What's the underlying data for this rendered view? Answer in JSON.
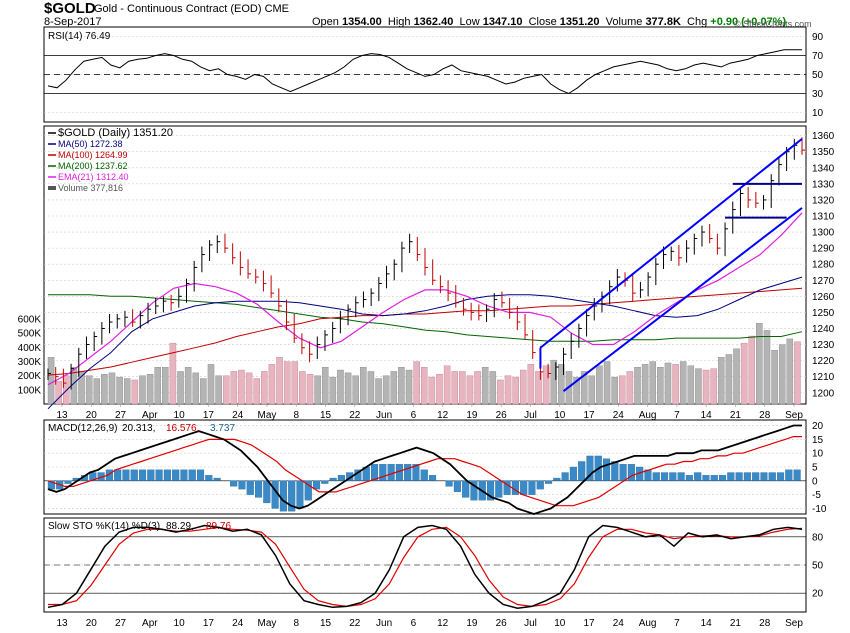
{
  "header": {
    "symbol": "$GOLD",
    "name": "Gold - Continuous Contract (EOD)",
    "exchange": "CME",
    "date": "8-Sep-2017",
    "open_label": "Open",
    "open": "1354.00",
    "high_label": "High",
    "high": "1362.40",
    "low_label": "Low",
    "low": "1347.10",
    "close_label": "Close",
    "close": "1351.20",
    "volume_label": "Volume",
    "volume": "377.8K",
    "chg_label": "Chg",
    "chg": "+0.90 (+0.07%)",
    "credit": "© StockCharts.com"
  },
  "colors": {
    "ma50": "#000080",
    "ma100": "#c00000",
    "ma200": "#006400",
    "ema21": "#e020e0",
    "channel": "#0000ff",
    "up_volume": "#b4b4b4",
    "down_volume": "#e8b4c0",
    "macd_hist": "#3a8ac8",
    "macd_signal": "#e00000"
  },
  "chart_data": [
    {
      "type": "line",
      "title": "RSI(14) 76.49",
      "legend": "RSI(14) 76.49",
      "ylim": [
        0,
        100
      ],
      "ytick_labels": [
        "90",
        "70",
        "50",
        "30",
        "10"
      ],
      "levels": [
        70,
        50,
        30
      ],
      "series": [
        {
          "name": "RSI(14)",
          "values": [
            38,
            36,
            44,
            55,
            64,
            66,
            68,
            60,
            57,
            64,
            66,
            67,
            70,
            72,
            70,
            66,
            64,
            58,
            54,
            56,
            50,
            48,
            45,
            50,
            48,
            40,
            36,
            32,
            36,
            40,
            44,
            48,
            52,
            58,
            66,
            70,
            72,
            71,
            68,
            62,
            56,
            52,
            48,
            50,
            56,
            60,
            54,
            52,
            50,
            48,
            44,
            40,
            42,
            46,
            48,
            50,
            40,
            34,
            30,
            36,
            44,
            50,
            54,
            58,
            60,
            62,
            64,
            62,
            60,
            56,
            54,
            56,
            60,
            62,
            60,
            58,
            62,
            64,
            66,
            70,
            72,
            74,
            76,
            76,
            76
          ]
        }
      ]
    },
    {
      "type": "candlestick",
      "title": "$GOLD (Daily) 1351.20",
      "legend": [
        "$GOLD (Daily) 1351.20",
        "MA(50) 1272.38",
        "MA(100) 1264.99",
        "MA(200) 1237.62",
        "EMA(21) 1312.40",
        "Volume 377,816"
      ],
      "ylim": [
        1193,
        1366
      ],
      "price_tick_labels": [
        "1360",
        "1350",
        "1340",
        "1330",
        "1320",
        "1310",
        "1300",
        "1290",
        "1280",
        "1270",
        "1260",
        "1250",
        "1240",
        "1230",
        "1220",
        "1210",
        "1200"
      ],
      "volume_tick_labels": [
        "600K",
        "500K",
        "400K",
        "300K",
        "200K",
        "100K"
      ],
      "x_tick_labels": [
        "13",
        "20",
        "27",
        "Apr",
        "10",
        "17",
        "24",
        "May",
        "8",
        "15",
        "22",
        "Jun",
        "6",
        "12",
        "19",
        "26",
        "Jul",
        "10",
        "17",
        "24",
        "Aug",
        "7",
        "14",
        "21",
        "28",
        "Sep"
      ],
      "close": [
        1212,
        1210,
        1206,
        1215,
        1224,
        1230,
        1235,
        1240,
        1244,
        1246,
        1247,
        1244,
        1248,
        1252,
        1254,
        1257,
        1256,
        1260,
        1268,
        1278,
        1286,
        1292,
        1294,
        1290,
        1284,
        1278,
        1274,
        1272,
        1268,
        1262,
        1254,
        1244,
        1234,
        1228,
        1224,
        1230,
        1236,
        1240,
        1246,
        1252,
        1256,
        1258,
        1262,
        1268,
        1274,
        1280,
        1290,
        1294,
        1286,
        1278,
        1270,
        1266,
        1262,
        1256,
        1252,
        1250,
        1248,
        1252,
        1258,
        1256,
        1250,
        1244,
        1236,
        1225,
        1213,
        1212,
        1216,
        1224,
        1232,
        1240,
        1248,
        1254,
        1260,
        1266,
        1272,
        1270,
        1262,
        1264,
        1272,
        1280,
        1286,
        1288,
        1284,
        1290,
        1296,
        1300,
        1296,
        1290,
        1302,
        1314,
        1324,
        1320,
        1318,
        1320,
        1332,
        1342,
        1350,
        1354,
        1351
      ],
      "series": [
        {
          "name": "MA(50)",
          "values": [
            1190,
            1203,
            1215,
            1225,
            1238,
            1246,
            1250,
            1254,
            1256,
            1257,
            1257,
            1257,
            1256,
            1254,
            1252,
            1249,
            1248,
            1249,
            1251,
            1254,
            1258,
            1260,
            1261,
            1261,
            1260,
            1258,
            1256,
            1254,
            1251,
            1248,
            1247,
            1248,
            1252,
            1258,
            1264,
            1268,
            1272
          ]
        },
        {
          "name": "MA(100)",
          "values": [
            1211,
            1212,
            1214,
            1216,
            1219,
            1222,
            1225,
            1228,
            1231,
            1235,
            1238,
            1241,
            1243,
            1246,
            1247,
            1248,
            1248,
            1249,
            1249,
            1250,
            1251,
            1251,
            1252,
            1253,
            1254,
            1254,
            1255,
            1256,
            1257,
            1258,
            1259,
            1260,
            1261,
            1262,
            1263,
            1264,
            1265
          ]
        },
        {
          "name": "MA(200)",
          "values": [
            1261,
            1261,
            1261,
            1260,
            1260,
            1259,
            1258,
            1257,
            1256,
            1255,
            1253,
            1251,
            1249,
            1247,
            1246,
            1244,
            1243,
            1241,
            1239,
            1238,
            1236,
            1235,
            1234,
            1233,
            1232,
            1232,
            1232,
            1233,
            1233,
            1233,
            1234,
            1234,
            1234,
            1234,
            1235,
            1235,
            1238
          ]
        },
        {
          "name": "EMA(21)",
          "values": [
            1205,
            1212,
            1222,
            1232,
            1244,
            1256,
            1265,
            1268,
            1266,
            1262,
            1255,
            1244,
            1234,
            1228,
            1232,
            1241,
            1250,
            1258,
            1264,
            1264,
            1260,
            1254,
            1250,
            1250,
            1247,
            1237,
            1230,
            1230,
            1238,
            1248,
            1256,
            1264,
            1270,
            1278,
            1286,
            1298,
            1312
          ]
        },
        {
          "name": "Volume",
          "values": [
            330,
            160,
            200,
            260,
            230,
            200,
            180,
            210,
            220,
            190,
            180,
            170,
            200,
            210,
            260,
            260,
            430,
            230,
            260,
            220,
            180,
            280,
            200,
            200,
            230,
            240,
            220,
            180,
            230,
            280,
            330,
            300,
            300,
            230,
            210,
            200,
            260,
            190,
            240,
            220,
            200,
            260,
            230,
            180,
            200,
            230,
            260,
            240,
            300,
            260,
            190,
            210,
            270,
            230,
            230,
            200,
            230,
            260,
            230,
            170,
            200,
            190,
            240,
            280,
            230,
            270,
            310,
            280,
            230,
            190,
            230,
            200,
            270,
            300,
            190,
            200,
            230,
            260,
            280,
            300,
            260,
            290,
            280,
            300,
            270,
            250,
            240,
            250,
            330,
            350,
            390,
            430,
            480,
            570,
            520,
            380,
            420,
            460,
            440
          ]
        }
      ],
      "annotations": [
        "Rising trend channel (blue)",
        "Horizontal support/resistance near 1330 and 1309"
      ]
    },
    {
      "type": "line",
      "title": "MACD(12,26,9) 20.313, 16.576, 3.737",
      "legend": [
        "MACD(12,26,9)",
        "20.313",
        "16.576",
        "3.737"
      ],
      "ylim": [
        -12,
        22
      ],
      "ytick_labels": [
        "20",
        "15",
        "10",
        "5",
        "0",
        "-5",
        "-10"
      ],
      "series": [
        {
          "name": "MACD",
          "values": [
            -3,
            -4,
            -3,
            -1,
            1,
            3,
            4,
            6,
            8,
            9,
            10,
            11,
            12,
            13,
            14,
            15,
            16,
            17,
            18,
            17,
            16,
            15,
            13,
            11,
            8,
            5,
            1,
            -3,
            -7,
            -9,
            -10,
            -9,
            -7,
            -5,
            -3,
            -1,
            1,
            3,
            5,
            7,
            8,
            9,
            10,
            11,
            12,
            11,
            10,
            8,
            6,
            3,
            0,
            -2,
            -4,
            -6,
            -7,
            -8,
            -10,
            -11,
            -12,
            -11,
            -10,
            -8,
            -6,
            -3,
            0,
            3,
            5,
            6,
            7,
            8,
            9,
            9,
            9,
            9,
            9,
            10,
            10,
            10,
            11,
            11,
            11,
            12,
            13,
            14,
            15,
            16,
            17,
            18,
            19,
            20,
            20
          ]
        },
        {
          "name": "Signal",
          "values": [
            0,
            -1,
            -2,
            -2,
            -1,
            0,
            1,
            2,
            4,
            5,
            6,
            7,
            8,
            9,
            10,
            11,
            12,
            13,
            14,
            15,
            15,
            15,
            15,
            14,
            13,
            11,
            9,
            7,
            4,
            2,
            0,
            -2,
            -4,
            -4,
            -4,
            -3,
            -2,
            -1,
            0,
            1,
            2,
            3,
            4,
            5,
            6,
            7,
            8,
            8,
            8,
            7,
            6,
            5,
            3,
            1,
            -1,
            -3,
            -5,
            -6,
            -7,
            -8,
            -9,
            -9,
            -9,
            -8,
            -7,
            -6,
            -4,
            -2,
            0,
            2,
            3,
            4,
            5,
            6,
            6,
            7,
            7,
            8,
            8,
            9,
            9,
            10,
            10,
            11,
            12,
            13,
            14,
            15,
            16,
            16
          ]
        },
        {
          "name": "Histogram",
          "values": [
            -3,
            -3,
            -1,
            1,
            2,
            3,
            3,
            4,
            4,
            4,
            4,
            4,
            4,
            4,
            4,
            4,
            4,
            4,
            4,
            2,
            1,
            0,
            -2,
            -3,
            -5,
            -6,
            -8,
            -10,
            -11,
            -11,
            -10,
            -7,
            -3,
            -1,
            1,
            2,
            3,
            4,
            5,
            6,
            6,
            6,
            6,
            6,
            6,
            4,
            2,
            0,
            -2,
            -4,
            -6,
            -7,
            -7,
            -7,
            -6,
            -5,
            -5,
            -5,
            -5,
            -3,
            -1,
            1,
            3,
            5,
            7,
            9,
            9,
            8,
            7,
            6,
            6,
            5,
            4,
            3,
            3,
            3,
            3,
            2,
            3,
            2,
            2,
            2,
            3,
            3,
            3,
            3,
            3,
            3,
            3,
            4,
            4
          ]
        }
      ]
    },
    {
      "type": "line",
      "title": "Slow STO %K(14) %D(3) 88.29, 89.76",
      "legend": [
        "Slow STO %K(14) %D(3)",
        "88.29",
        "89.76"
      ],
      "ylim": [
        0,
        100
      ],
      "ytick_labels": [
        "80",
        "50",
        "20"
      ],
      "levels": [
        80,
        50,
        20
      ],
      "x_tick_labels": [
        "13",
        "20",
        "27",
        "Apr",
        "10",
        "17",
        "24",
        "May",
        "8",
        "15",
        "22",
        "Jun",
        "6",
        "12",
        "19",
        "26",
        "Jul",
        "10",
        "17",
        "24",
        "Aug",
        "7",
        "14",
        "21",
        "28",
        "Sep"
      ],
      "series": [
        {
          "name": "%K",
          "values": [
            5,
            8,
            20,
            45,
            70,
            85,
            90,
            90,
            88,
            85,
            88,
            92,
            90,
            86,
            88,
            82,
            60,
            30,
            12,
            8,
            5,
            6,
            10,
            20,
            45,
            80,
            90,
            92,
            88,
            70,
            40,
            20,
            8,
            4,
            6,
            12,
            20,
            45,
            80,
            92,
            90,
            85,
            80,
            82,
            70,
            84,
            80,
            82,
            78,
            80,
            82,
            88,
            90,
            88
          ]
        },
        {
          "name": "%D",
          "values": [
            8,
            8,
            12,
            28,
            50,
            72,
            84,
            88,
            88,
            86,
            86,
            88,
            90,
            88,
            87,
            85,
            72,
            48,
            24,
            12,
            8,
            6,
            8,
            14,
            30,
            58,
            80,
            88,
            90,
            80,
            60,
            34,
            16,
            8,
            6,
            8,
            14,
            30,
            58,
            80,
            88,
            88,
            84,
            82,
            78,
            80,
            81,
            81,
            80,
            80,
            81,
            85,
            88,
            89
          ]
        }
      ]
    }
  ]
}
